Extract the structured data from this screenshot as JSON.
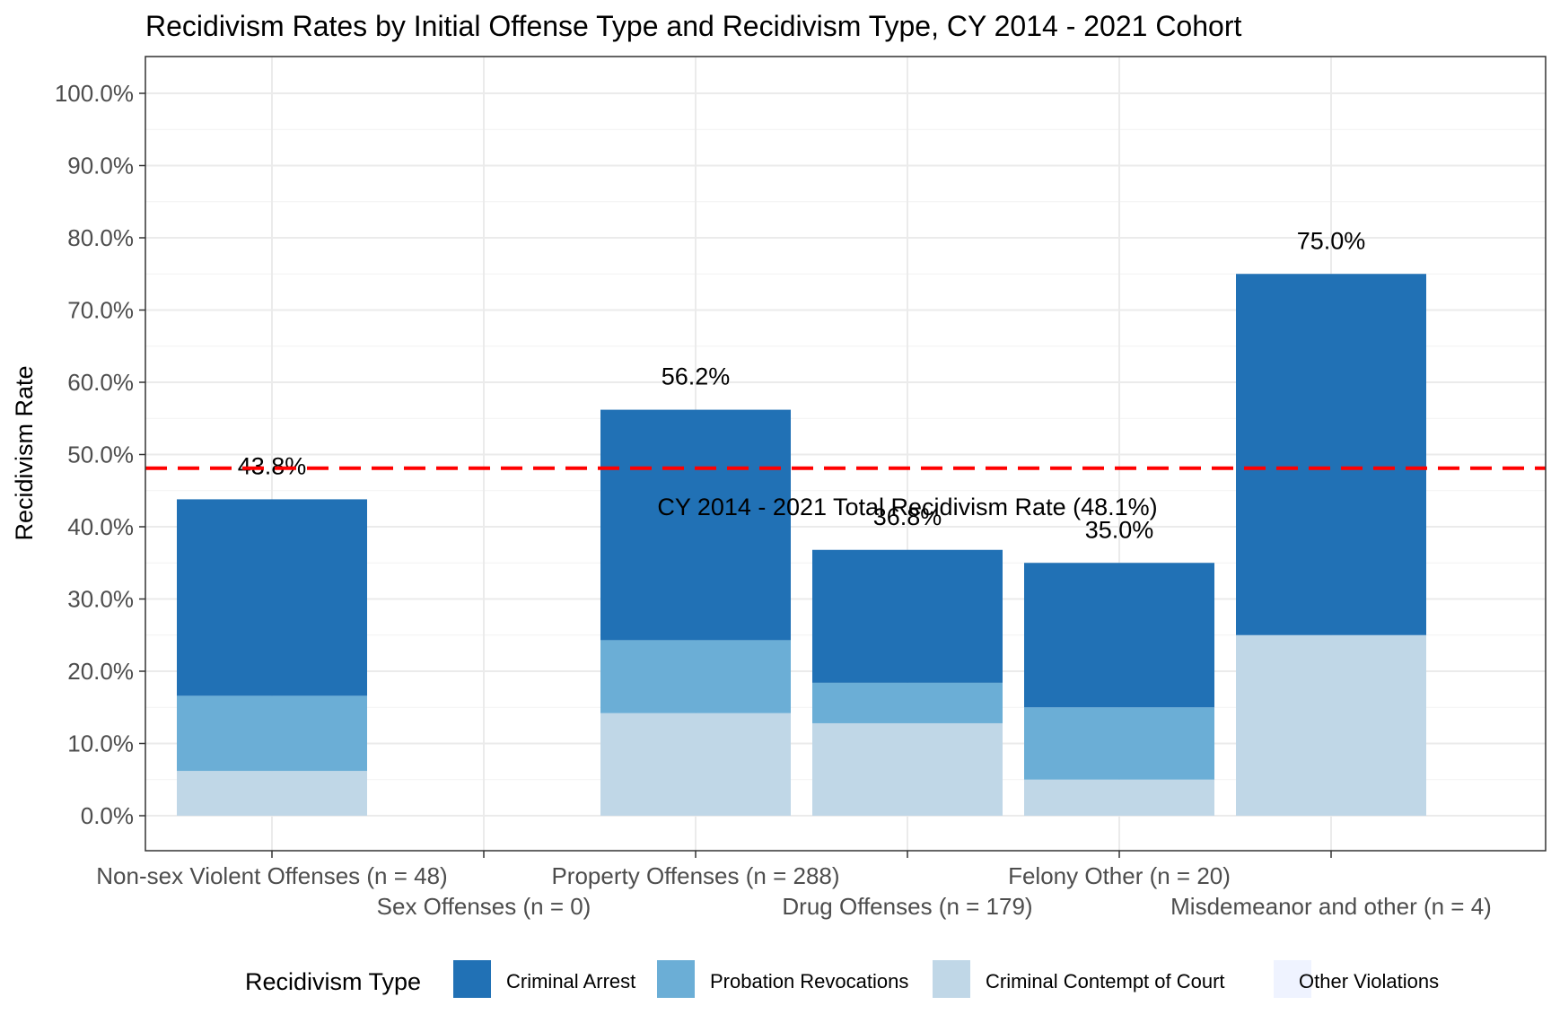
{
  "chart_data": {
    "type": "bar",
    "stacked": true,
    "title": "Recidivism Rates by Initial Offense Type and Recidivism Type, CY 2014 - 2021 Cohort",
    "ylabel": "Recidivism Rate",
    "xlabel": "",
    "ylim": [
      0,
      100
    ],
    "y_ticks": [
      "0.0%",
      "10.0%",
      "20.0%",
      "30.0%",
      "40.0%",
      "50.0%",
      "60.0%",
      "70.0%",
      "80.0%",
      "90.0%",
      "100.0%"
    ],
    "categories": [
      "Non-sex Violent Offenses (n = 48)",
      "Sex Offenses (n = 0)",
      "Property Offenses (n = 288)",
      "Drug Offenses (n = 179)",
      "Felony Other (n = 20)",
      "Misdemeanor and other (n = 4)"
    ],
    "series": [
      {
        "name": "Criminal Contempt of Court",
        "color": "#c0d7e7",
        "values": [
          6.2,
          0,
          14.2,
          12.8,
          5.0,
          25.0
        ]
      },
      {
        "name": "Probation Revocations",
        "color": "#6baed6",
        "values": [
          10.4,
          0,
          10.1,
          5.6,
          10.0,
          0
        ]
      },
      {
        "name": "Criminal Arrest",
        "color": "#2171b5",
        "values": [
          27.2,
          0,
          31.9,
          18.4,
          20.0,
          50.0
        ]
      },
      {
        "name": "Other Violations",
        "color": "#eff3ff",
        "values": [
          0,
          0,
          0,
          0,
          0,
          0
        ]
      }
    ],
    "data_labels": [
      "43.8%",
      "",
      "56.2%",
      "36.8%",
      "35.0%",
      "75.0%"
    ],
    "reference_line": {
      "value": 48.1,
      "label": "CY 2014 - 2021 Total Recidivism Rate (48.1%)",
      "color": "#ff0000"
    },
    "legend": {
      "title": "Recidivism Type",
      "position": "bottom",
      "items": [
        {
          "name": "Criminal Arrest",
          "color": "#2171b5"
        },
        {
          "name": "Probation Revocations",
          "color": "#6baed6"
        },
        {
          "name": "Criminal Contempt of Court",
          "color": "#c0d7e7"
        },
        {
          "name": "Other Violations",
          "color": "#eff3ff"
        }
      ]
    },
    "grid": true
  }
}
